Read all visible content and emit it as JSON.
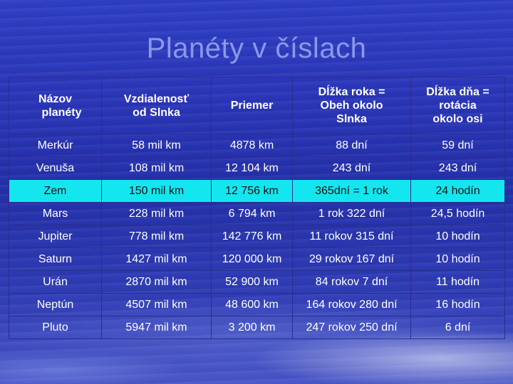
{
  "slide": {
    "title": "Planéty v číslach"
  },
  "table": {
    "headers": [
      {
        "lines": [
          "Názov",
          "planéty"
        ]
      },
      {
        "lines": [
          "Vzdialenosť",
          "od Slnka"
        ]
      },
      {
        "lines": [
          "Priemer"
        ]
      },
      {
        "lines": [
          "Dĺžka roka =",
          "Obeh okolo",
          "Slnka"
        ]
      },
      {
        "lines": [
          "Dĺžka dňa =",
          "rotácia",
          "okolo osi"
        ]
      }
    ],
    "rows": [
      {
        "cells": [
          "Merkúr",
          "58 mil km",
          "4878 km",
          "88 dní",
          "59 dní"
        ]
      },
      {
        "cells": [
          "Venuša",
          "108 mil km",
          "12 104 km",
          "243 dní",
          "243 dní"
        ]
      },
      {
        "cells": [
          "Zem",
          "150 mil km",
          "12 756 km",
          "365dní = 1 rok",
          "24 hodín"
        ],
        "highlight": true
      },
      {
        "cells": [
          "Mars",
          "228 mil km",
          "6 794 km",
          "1 rok 322 dní",
          "24,5 hodín"
        ]
      },
      {
        "cells": [
          "Jupiter",
          "778 mil km",
          "142 776 km",
          "11 rokov 315 dní",
          "10 hodín"
        ]
      },
      {
        "cells": [
          "Saturn",
          "1427 mil km",
          "120 000 km",
          "29 rokov 167 dní",
          "10 hodín"
        ]
      },
      {
        "cells": [
          "Urán",
          "2870 mil km",
          "52 900 km",
          "84 rokov 7 dní",
          "11 hodín"
        ]
      },
      {
        "cells": [
          "Neptún",
          "4507 mil km",
          "48 600 km",
          "164 rokov 280 dní",
          "16 hodín"
        ]
      },
      {
        "cells": [
          "Pluto",
          "5947 mil km",
          "3 200 km",
          "247 rokov 250 dní",
          "6 dní"
        ]
      }
    ],
    "colors": {
      "highlight_row": "#14e6ef",
      "title": "#8a98e8",
      "cell_text": "#ffffff"
    }
  }
}
